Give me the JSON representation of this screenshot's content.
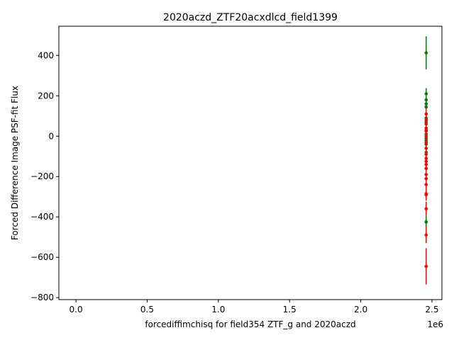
{
  "chart_data": {
    "type": "scatter",
    "title": "2020aczd_ZTF20acxdlcd_field1399",
    "xlabel": "forcediffimchisq for field354 ZTF_g and 2020aczd",
    "ylabel": "Forced Difference Image PSF-fit Flux",
    "x_offset_label": "1e6",
    "xlim": [
      -120000,
      2570000
    ],
    "ylim": [
      -810,
      545
    ],
    "x_ticks": [
      0,
      500000,
      1000000,
      1500000,
      2000000,
      2500000
    ],
    "x_tick_labels": [
      "0.0",
      "0.5",
      "1.0",
      "1.5",
      "2.0",
      "2.5"
    ],
    "y_ticks": [
      -800,
      -600,
      -400,
      -200,
      0,
      200,
      400
    ],
    "y_tick_labels": [
      "−800",
      "−600",
      "−400",
      "−200",
      "0",
      "200",
      "400"
    ],
    "grid": false,
    "series": [
      {
        "color": "#008000",
        "x": [
          2459200,
          2459200,
          2459200,
          2459200,
          2459200,
          2459200,
          2459200,
          2459200,
          2459200,
          2459200,
          2459200,
          2459200,
          2459200,
          2459200
        ],
        "y": [
          413,
          210,
          180,
          160,
          145,
          90,
          70,
          30,
          10,
          -10,
          -20,
          -40,
          -80,
          -425
        ],
        "err": [
          82,
          28,
          25,
          25,
          25,
          25,
          25,
          25,
          25,
          25,
          25,
          25,
          25,
          30
        ]
      },
      {
        "color": "#ff0000",
        "x": [
          2459200,
          2459200,
          2459200,
          2459200,
          2459200,
          2459200,
          2459200,
          2459200,
          2459200,
          2459200,
          2459200,
          2459200,
          2459200,
          2459200,
          2459200,
          2459200,
          2459200,
          2459200,
          2459200,
          2459200,
          2459200
        ],
        "y": [
          110,
          80,
          60,
          40,
          25,
          0,
          -30,
          -60,
          -90,
          -110,
          -125,
          -140,
          -160,
          -190,
          -210,
          -240,
          -285,
          -290,
          -360,
          -490,
          -645
        ],
        "err": [
          30,
          30,
          30,
          30,
          30,
          30,
          30,
          30,
          30,
          30,
          30,
          30,
          30,
          30,
          30,
          30,
          30,
          30,
          35,
          40,
          90
        ]
      }
    ]
  }
}
